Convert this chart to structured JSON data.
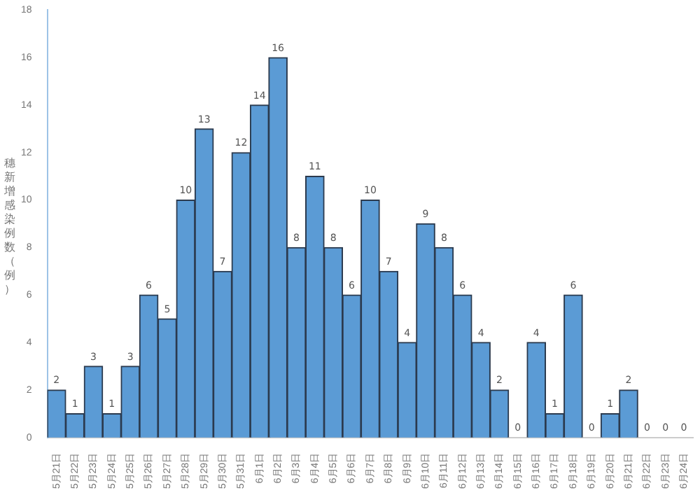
{
  "chart_data": {
    "type": "bar",
    "ylabel": "穗新增感染例数（例）",
    "categories": [
      "5月21日",
      "5月22日",
      "5月23日",
      "5月24日",
      "5月25日",
      "5月26日",
      "5月27日",
      "5月28日",
      "5月29日",
      "5月30日",
      "5月31日",
      "6月1日",
      "6月2日",
      "6月3日",
      "6月4日",
      "6月5日",
      "6月6日",
      "6月7日",
      "6月8日",
      "6月9日",
      "6月10日",
      "6月11日",
      "6月12日",
      "6月13日",
      "6月14日",
      "6月15日",
      "6月16日",
      "6月17日",
      "6月18日",
      "6月19日",
      "6月20日",
      "6月21日",
      "6月22日",
      "6月23日",
      "6月24日"
    ],
    "values": [
      2,
      1,
      3,
      1,
      3,
      6,
      5,
      10,
      13,
      7,
      12,
      14,
      16,
      8,
      11,
      8,
      6,
      10,
      7,
      4,
      9,
      8,
      6,
      4,
      2,
      0,
      4,
      1,
      6,
      0,
      1,
      2,
      0,
      0,
      0
    ],
    "color": "#5b9bd5",
    "ylim": [
      0,
      18
    ],
    "yticks": [
      0,
      2,
      4,
      6,
      8,
      10,
      12,
      14,
      16,
      18
    ],
    "grid": false,
    "data_labels": true
  }
}
